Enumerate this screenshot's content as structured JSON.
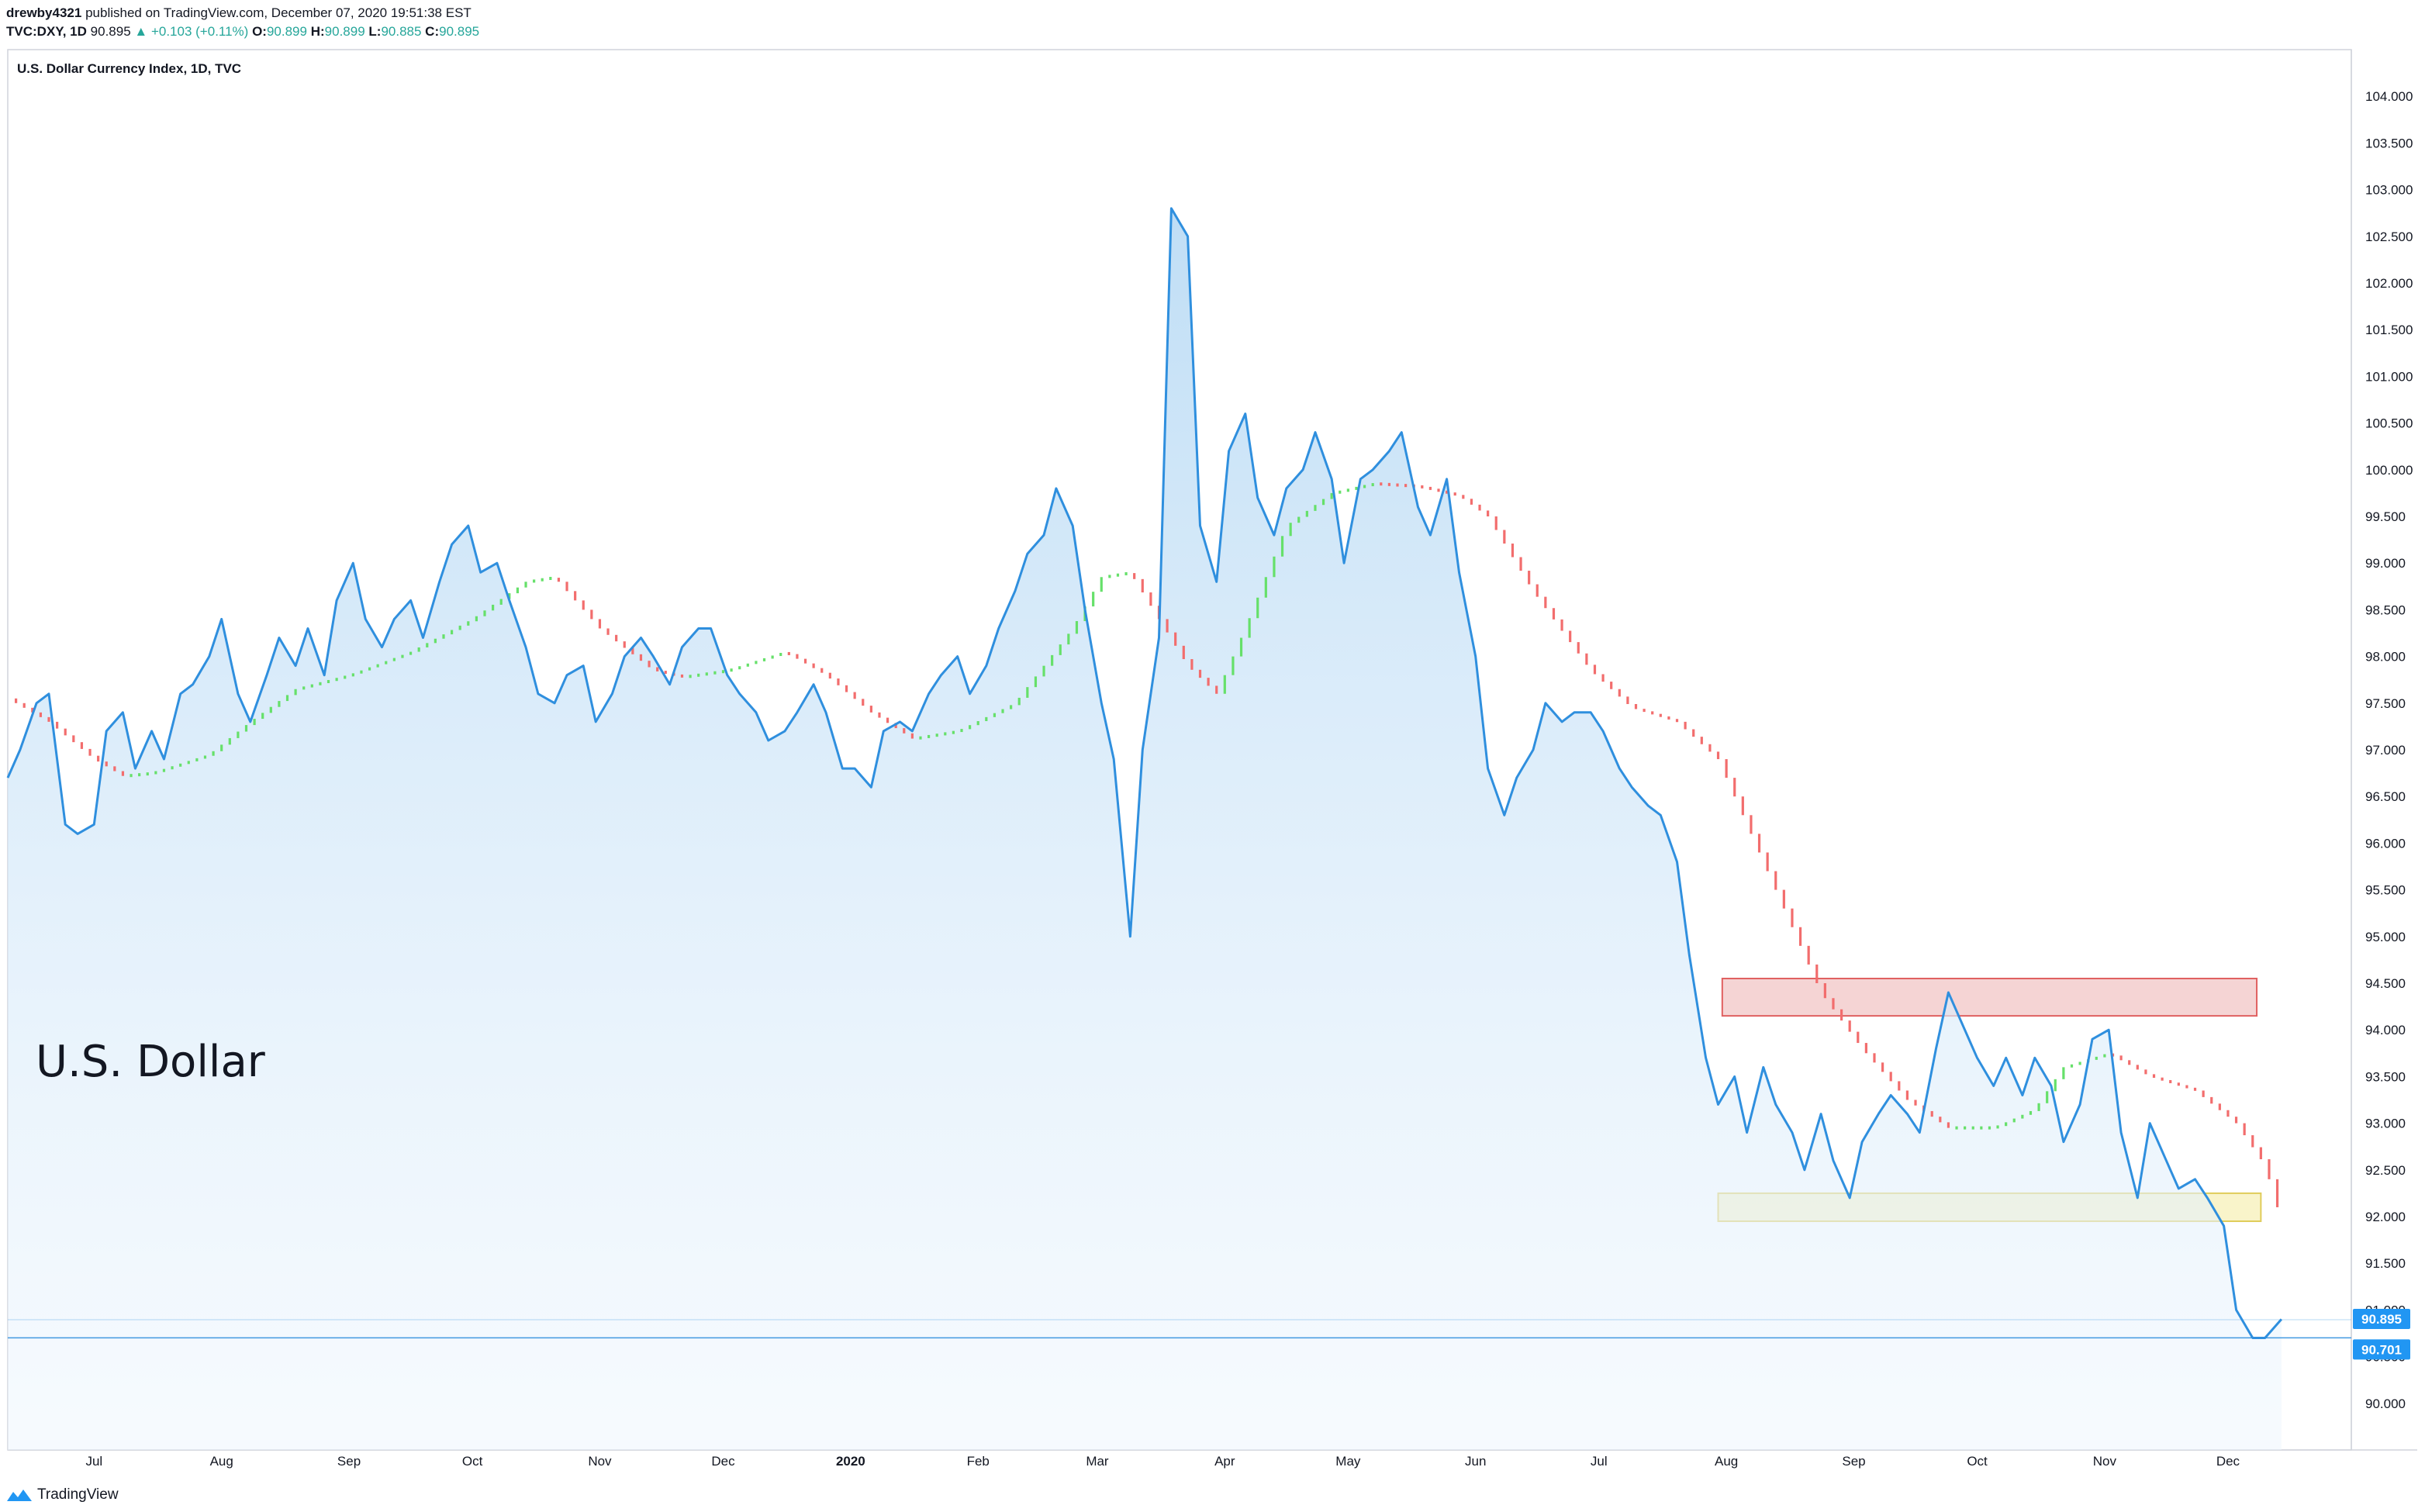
{
  "header": {
    "author": "drewby4321",
    "published_text": "published on TradingView.com, December 07, 2020 19:51:38 EST",
    "symbol": "TVC:DXY, 1D",
    "last": "90.895",
    "change": "+0.103 (+0.11%)",
    "o_label": "O:",
    "o_value": "90.899",
    "h_label": "H:",
    "h_value": "90.899",
    "l_label": "L:",
    "l_value": "90.885",
    "c_label": "C:",
    "c_value": "90.895"
  },
  "footer": {
    "brand": "TradingView"
  },
  "chart_data": {
    "type": "area",
    "title": "U.S. Dollar Currency Index, 1D, TVC",
    "annotation": "U.S. Dollar",
    "ylim": [
      89.5,
      104.5
    ],
    "y_ticks": [
      90.0,
      90.5,
      91.0,
      91.5,
      92.0,
      92.5,
      93.0,
      93.5,
      94.0,
      94.5,
      95.0,
      95.5,
      96.0,
      96.5,
      97.0,
      97.5,
      98.0,
      98.5,
      99.0,
      99.5,
      100.0,
      100.5,
      101.0,
      101.5,
      102.0,
      102.5,
      103.0,
      103.5,
      104.0
    ],
    "x_range": [
      "2019-06-10",
      "2020-12-31"
    ],
    "x_ticks": [
      {
        "date": "2019-07-01",
        "label": "Jul"
      },
      {
        "date": "2019-08-01",
        "label": "Aug"
      },
      {
        "date": "2019-09-01",
        "label": "Sep"
      },
      {
        "date": "2019-10-01",
        "label": "Oct"
      },
      {
        "date": "2019-11-01",
        "label": "Nov"
      },
      {
        "date": "2019-12-01",
        "label": "Dec"
      },
      {
        "date": "2020-01-01",
        "label": "2020"
      },
      {
        "date": "2020-02-01",
        "label": "Feb"
      },
      {
        "date": "2020-03-01",
        "label": "Mar"
      },
      {
        "date": "2020-04-01",
        "label": "Apr"
      },
      {
        "date": "2020-05-01",
        "label": "May"
      },
      {
        "date": "2020-06-01",
        "label": "Jun"
      },
      {
        "date": "2020-07-01",
        "label": "Jul"
      },
      {
        "date": "2020-08-01",
        "label": "Aug"
      },
      {
        "date": "2020-09-01",
        "label": "Sep"
      },
      {
        "date": "2020-10-01",
        "label": "Oct"
      },
      {
        "date": "2020-11-01",
        "label": "Nov"
      },
      {
        "date": "2020-12-01",
        "label": "Dec"
      }
    ],
    "price_labels": [
      {
        "value": 90.895,
        "label": "90.895"
      },
      {
        "value": 90.701,
        "label": "90.701"
      }
    ],
    "price_series": [
      [
        "2019-06-10",
        96.7
      ],
      [
        "2019-06-13",
        97.0
      ],
      [
        "2019-06-17",
        97.5
      ],
      [
        "2019-06-20",
        97.6
      ],
      [
        "2019-06-24",
        96.2
      ],
      [
        "2019-06-27",
        96.1
      ],
      [
        "2019-07-01",
        96.2
      ],
      [
        "2019-07-04",
        97.2
      ],
      [
        "2019-07-08",
        97.4
      ],
      [
        "2019-07-11",
        96.8
      ],
      [
        "2019-07-15",
        97.2
      ],
      [
        "2019-07-18",
        96.9
      ],
      [
        "2019-07-22",
        97.6
      ],
      [
        "2019-07-25",
        97.7
      ],
      [
        "2019-07-29",
        98.0
      ],
      [
        "2019-08-01",
        98.4
      ],
      [
        "2019-08-05",
        97.6
      ],
      [
        "2019-08-08",
        97.3
      ],
      [
        "2019-08-12",
        97.8
      ],
      [
        "2019-08-15",
        98.2
      ],
      [
        "2019-08-19",
        97.9
      ],
      [
        "2019-08-22",
        98.3
      ],
      [
        "2019-08-26",
        97.8
      ],
      [
        "2019-08-29",
        98.6
      ],
      [
        "2019-09-02",
        99.0
      ],
      [
        "2019-09-05",
        98.4
      ],
      [
        "2019-09-09",
        98.1
      ],
      [
        "2019-09-12",
        98.4
      ],
      [
        "2019-09-16",
        98.6
      ],
      [
        "2019-09-19",
        98.2
      ],
      [
        "2019-09-23",
        98.8
      ],
      [
        "2019-09-26",
        99.2
      ],
      [
        "2019-09-30",
        99.4
      ],
      [
        "2019-10-03",
        98.9
      ],
      [
        "2019-10-07",
        99.0
      ],
      [
        "2019-10-10",
        98.6
      ],
      [
        "2019-10-14",
        98.1
      ],
      [
        "2019-10-17",
        97.6
      ],
      [
        "2019-10-21",
        97.5
      ],
      [
        "2019-10-24",
        97.8
      ],
      [
        "2019-10-28",
        97.9
      ],
      [
        "2019-10-31",
        97.3
      ],
      [
        "2019-11-04",
        97.6
      ],
      [
        "2019-11-07",
        98.0
      ],
      [
        "2019-11-11",
        98.2
      ],
      [
        "2019-11-14",
        98.0
      ],
      [
        "2019-11-18",
        97.7
      ],
      [
        "2019-11-21",
        98.1
      ],
      [
        "2019-11-25",
        98.3
      ],
      [
        "2019-11-28",
        98.3
      ],
      [
        "2019-12-02",
        97.8
      ],
      [
        "2019-12-05",
        97.6
      ],
      [
        "2019-12-09",
        97.4
      ],
      [
        "2019-12-12",
        97.1
      ],
      [
        "2019-12-16",
        97.2
      ],
      [
        "2019-12-19",
        97.4
      ],
      [
        "2019-12-23",
        97.7
      ],
      [
        "2019-12-26",
        97.4
      ],
      [
        "2019-12-30",
        96.8
      ],
      [
        "2020-01-02",
        96.8
      ],
      [
        "2020-01-06",
        96.6
      ],
      [
        "2020-01-09",
        97.2
      ],
      [
        "2020-01-13",
        97.3
      ],
      [
        "2020-01-16",
        97.2
      ],
      [
        "2020-01-20",
        97.6
      ],
      [
        "2020-01-23",
        97.8
      ],
      [
        "2020-01-27",
        98.0
      ],
      [
        "2020-01-30",
        97.6
      ],
      [
        "2020-02-03",
        97.9
      ],
      [
        "2020-02-06",
        98.3
      ],
      [
        "2020-02-10",
        98.7
      ],
      [
        "2020-02-13",
        99.1
      ],
      [
        "2020-02-17",
        99.3
      ],
      [
        "2020-02-20",
        99.8
      ],
      [
        "2020-02-24",
        99.4
      ],
      [
        "2020-02-27",
        98.5
      ],
      [
        "2020-03-02",
        97.5
      ],
      [
        "2020-03-05",
        96.9
      ],
      [
        "2020-03-09",
        95.0
      ],
      [
        "2020-03-12",
        97.0
      ],
      [
        "2020-03-16",
        98.2
      ],
      [
        "2020-03-19",
        102.8
      ],
      [
        "2020-03-23",
        102.5
      ],
      [
        "2020-03-26",
        99.4
      ],
      [
        "2020-03-30",
        98.8
      ],
      [
        "2020-04-02",
        100.2
      ],
      [
        "2020-04-06",
        100.6
      ],
      [
        "2020-04-09",
        99.7
      ],
      [
        "2020-04-13",
        99.3
      ],
      [
        "2020-04-16",
        99.8
      ],
      [
        "2020-04-20",
        100.0
      ],
      [
        "2020-04-23",
        100.4
      ],
      [
        "2020-04-27",
        99.9
      ],
      [
        "2020-04-30",
        99.0
      ],
      [
        "2020-05-04",
        99.9
      ],
      [
        "2020-05-07",
        100.0
      ],
      [
        "2020-05-11",
        100.2
      ],
      [
        "2020-05-14",
        100.4
      ],
      [
        "2020-05-18",
        99.6
      ],
      [
        "2020-05-21",
        99.3
      ],
      [
        "2020-05-25",
        99.9
      ],
      [
        "2020-05-28",
        98.9
      ],
      [
        "2020-06-01",
        98.0
      ],
      [
        "2020-06-04",
        96.8
      ],
      [
        "2020-06-08",
        96.3
      ],
      [
        "2020-06-11",
        96.7
      ],
      [
        "2020-06-15",
        97.0
      ],
      [
        "2020-06-18",
        97.5
      ],
      [
        "2020-06-22",
        97.3
      ],
      [
        "2020-06-25",
        97.4
      ],
      [
        "2020-06-29",
        97.4
      ],
      [
        "2020-07-02",
        97.2
      ],
      [
        "2020-07-06",
        96.8
      ],
      [
        "2020-07-09",
        96.6
      ],
      [
        "2020-07-13",
        96.4
      ],
      [
        "2020-07-16",
        96.3
      ],
      [
        "2020-07-20",
        95.8
      ],
      [
        "2020-07-23",
        94.8
      ],
      [
        "2020-07-27",
        93.7
      ],
      [
        "2020-07-30",
        93.2
      ],
      [
        "2020-08-03",
        93.5
      ],
      [
        "2020-08-06",
        92.9
      ],
      [
        "2020-08-10",
        93.6
      ],
      [
        "2020-08-13",
        93.2
      ],
      [
        "2020-08-17",
        92.9
      ],
      [
        "2020-08-20",
        92.5
      ],
      [
        "2020-08-24",
        93.1
      ],
      [
        "2020-08-27",
        92.6
      ],
      [
        "2020-08-31",
        92.2
      ],
      [
        "2020-09-03",
        92.8
      ],
      [
        "2020-09-07",
        93.1
      ],
      [
        "2020-09-10",
        93.3
      ],
      [
        "2020-09-14",
        93.1
      ],
      [
        "2020-09-17",
        92.9
      ],
      [
        "2020-09-21",
        93.8
      ],
      [
        "2020-09-24",
        94.4
      ],
      [
        "2020-09-28",
        94.0
      ],
      [
        "2020-10-01",
        93.7
      ],
      [
        "2020-10-05",
        93.4
      ],
      [
        "2020-10-08",
        93.7
      ],
      [
        "2020-10-12",
        93.3
      ],
      [
        "2020-10-15",
        93.7
      ],
      [
        "2020-10-19",
        93.4
      ],
      [
        "2020-10-22",
        92.8
      ],
      [
        "2020-10-26",
        93.2
      ],
      [
        "2020-10-29",
        93.9
      ],
      [
        "2020-11-02",
        94.0
      ],
      [
        "2020-11-05",
        92.9
      ],
      [
        "2020-11-09",
        92.2
      ],
      [
        "2020-11-12",
        93.0
      ],
      [
        "2020-11-16",
        92.6
      ],
      [
        "2020-11-19",
        92.3
      ],
      [
        "2020-11-23",
        92.4
      ],
      [
        "2020-11-26",
        92.2
      ],
      [
        "2020-11-30",
        91.9
      ],
      [
        "2020-12-03",
        91.0
      ],
      [
        "2020-12-07",
        90.7
      ],
      [
        "2020-12-10",
        90.7
      ],
      [
        "2020-12-14",
        90.9
      ]
    ],
    "trend_series": [
      [
        "2019-06-10",
        97.55
      ],
      [
        "2019-06-20",
        97.3
      ],
      [
        "2019-07-01",
        96.9
      ],
      [
        "2019-07-08",
        96.72
      ],
      [
        "2019-07-15",
        96.75
      ],
      [
        "2019-07-29",
        96.95
      ],
      [
        "2019-08-08",
        97.3
      ],
      [
        "2019-08-19",
        97.65
      ],
      [
        "2019-09-01",
        97.8
      ],
      [
        "2019-09-16",
        98.05
      ],
      [
        "2019-10-01",
        98.4
      ],
      [
        "2019-10-14",
        98.8
      ],
      [
        "2019-10-21",
        98.85
      ],
      [
        "2019-11-01",
        98.3
      ],
      [
        "2019-11-14",
        97.85
      ],
      [
        "2019-11-21",
        97.78
      ],
      [
        "2019-12-02",
        97.85
      ],
      [
        "2019-12-16",
        98.05
      ],
      [
        "2019-12-26",
        97.8
      ],
      [
        "2020-01-06",
        97.4
      ],
      [
        "2020-01-16",
        97.12
      ],
      [
        "2020-01-27",
        97.2
      ],
      [
        "2020-02-10",
        97.5
      ],
      [
        "2020-02-24",
        98.3
      ],
      [
        "2020-03-02",
        98.85
      ],
      [
        "2020-03-09",
        98.9
      ],
      [
        "2020-03-16",
        98.4
      ],
      [
        "2020-03-23",
        97.9
      ],
      [
        "2020-03-30",
        97.6
      ],
      [
        "2020-04-06",
        98.3
      ],
      [
        "2020-04-16",
        99.4
      ],
      [
        "2020-04-27",
        99.75
      ],
      [
        "2020-05-07",
        99.85
      ],
      [
        "2020-05-18",
        99.82
      ],
      [
        "2020-05-28",
        99.72
      ],
      [
        "2020-06-04",
        99.5
      ],
      [
        "2020-06-15",
        98.7
      ],
      [
        "2020-06-29",
        97.85
      ],
      [
        "2020-07-09",
        97.45
      ],
      [
        "2020-07-20",
        97.3
      ],
      [
        "2020-07-30",
        96.9
      ],
      [
        "2020-08-10",
        95.8
      ],
      [
        "2020-08-24",
        94.4
      ],
      [
        "2020-09-03",
        93.8
      ],
      [
        "2020-09-14",
        93.25
      ],
      [
        "2020-09-24",
        92.95
      ],
      [
        "2020-10-05",
        92.95
      ],
      [
        "2020-10-15",
        93.15
      ],
      [
        "2020-10-22",
        93.6
      ],
      [
        "2020-11-02",
        93.75
      ],
      [
        "2020-11-12",
        93.5
      ],
      [
        "2020-11-23",
        93.35
      ],
      [
        "2020-12-03",
        93.0
      ],
      [
        "2020-12-10",
        92.55
      ],
      [
        "2020-12-14",
        91.95
      ]
    ],
    "trend_color_up": "#66e06a",
    "trend_color_down": "#f26d6d",
    "line_color": "#2f8fde",
    "zones": [
      {
        "start": "2020-07-31",
        "end": "2020-12-08",
        "y0": 94.15,
        "y1": 94.55,
        "fill": "#f2c6c6",
        "stroke": "#e06060"
      },
      {
        "start": "2020-07-30",
        "end": "2020-12-09",
        "y0": 91.95,
        "y1": 92.25,
        "fill": "#f7f0b8",
        "stroke": "#e0cc5a"
      }
    ]
  }
}
